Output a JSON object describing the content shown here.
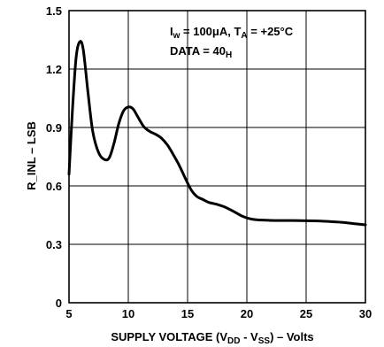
{
  "chart_data": {
    "type": "line",
    "xlabel": {
      "prefix": "SUPPLY VOLTAGE (V",
      "sub1": "DD",
      "mid": " - V",
      "sub2": "SS",
      "suffix": ") – Volts"
    },
    "ylabel": "R_INL – LSB",
    "xlim": [
      5,
      30
    ],
    "ylim": [
      0,
      1.5
    ],
    "x_ticks": [
      "5",
      "10",
      "15",
      "20",
      "25",
      "30"
    ],
    "y_ticks": [
      "0",
      "0.3",
      "0.6",
      "0.9",
      "1.2",
      "1.5"
    ],
    "grid": true,
    "annotations": {
      "line1": {
        "a": "I",
        "a_sub": "w",
        "b": " = 100μA, T",
        "b_sub": "A",
        "c": " = +25°C"
      },
      "line2": {
        "a": "DATA = 40",
        "a_sub": "H"
      }
    },
    "series": [
      {
        "color": "#000000",
        "x": [
          5.0,
          5.3,
          5.6,
          5.9,
          6.2,
          6.6,
          7.0,
          7.5,
          8.0,
          8.4,
          8.8,
          9.2,
          9.6,
          10.0,
          10.4,
          10.8,
          11.3,
          11.8,
          12.3,
          12.8,
          13.3,
          13.8,
          14.3,
          14.8,
          15.3,
          15.8,
          16.3,
          16.8,
          17.5,
          18.2,
          19.0,
          19.6,
          20.2,
          20.8,
          22.0,
          24.0,
          26.0,
          28.0,
          29.2,
          30.0
        ],
        "y": [
          0.66,
          1.0,
          1.26,
          1.34,
          1.3,
          1.08,
          0.88,
          0.77,
          0.735,
          0.745,
          0.82,
          0.92,
          0.985,
          1.005,
          0.995,
          0.955,
          0.905,
          0.88,
          0.865,
          0.845,
          0.81,
          0.76,
          0.705,
          0.64,
          0.58,
          0.545,
          0.53,
          0.515,
          0.505,
          0.49,
          0.465,
          0.445,
          0.432,
          0.426,
          0.423,
          0.422,
          0.42,
          0.413,
          0.405,
          0.4
        ]
      }
    ]
  }
}
